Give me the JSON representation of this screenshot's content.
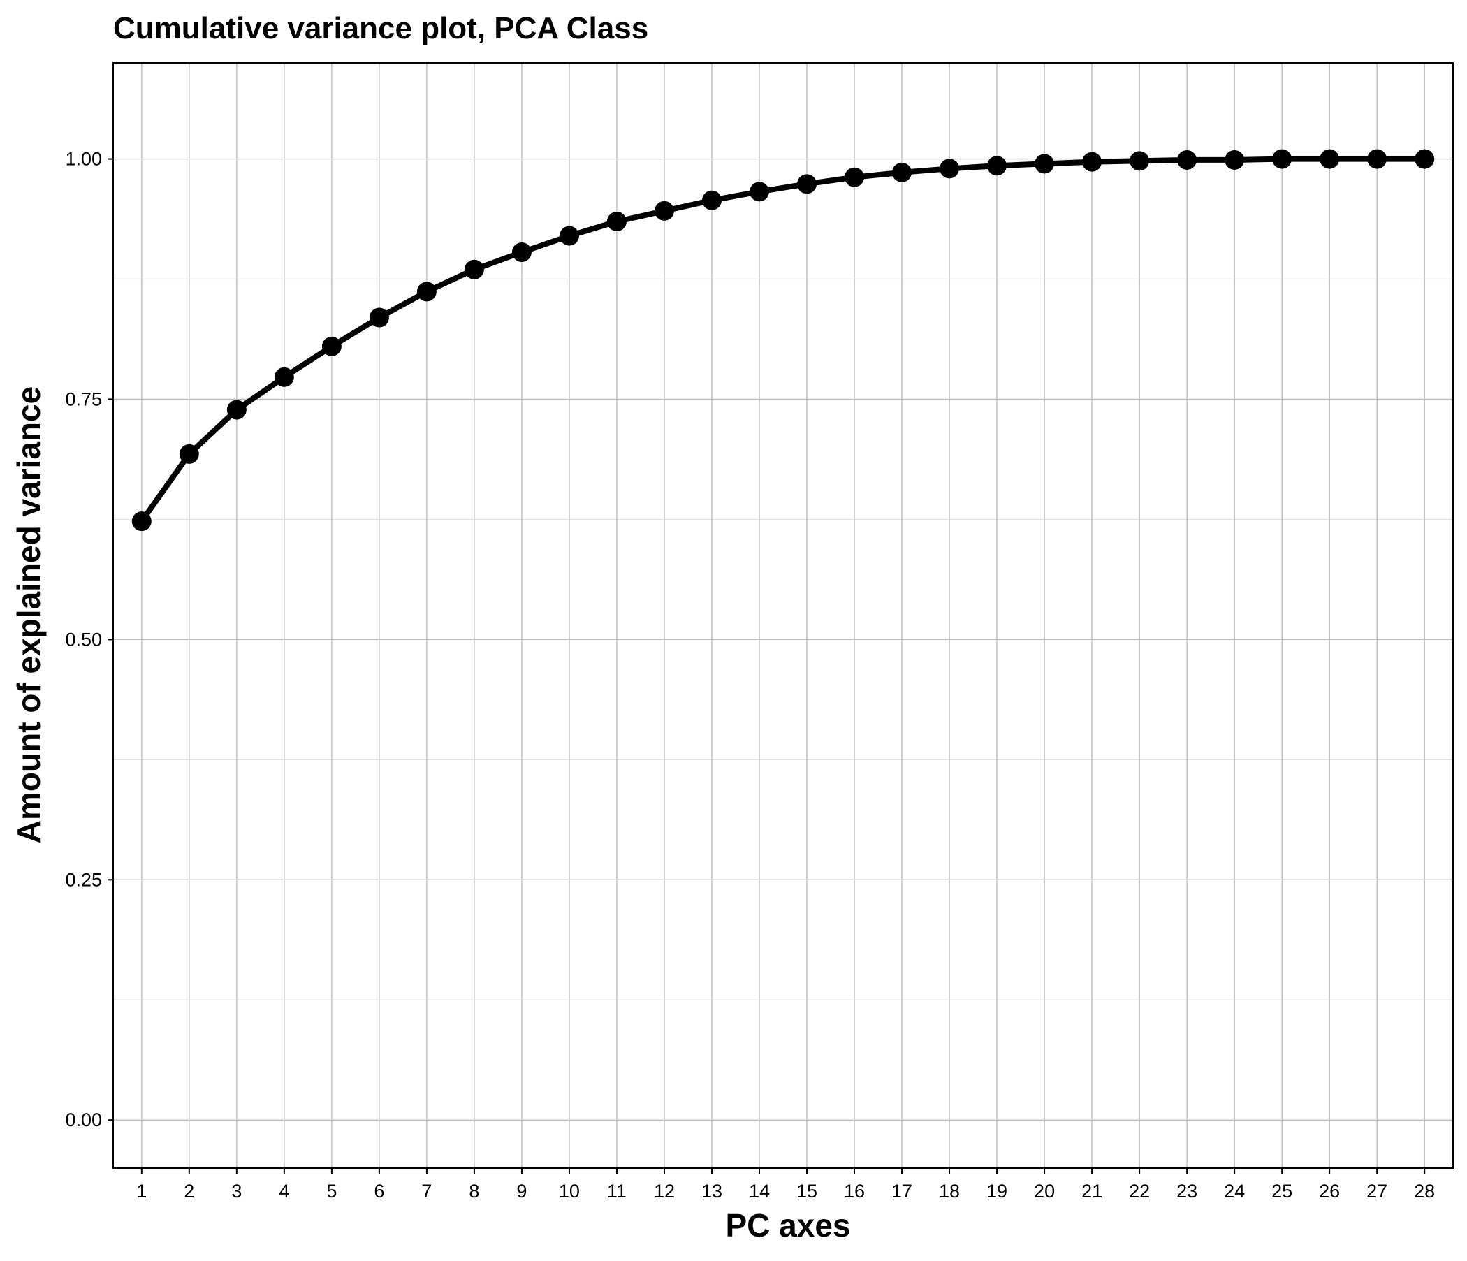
{
  "chart_data": {
    "type": "line",
    "title": "Cumulative variance plot, PCA Class",
    "xlabel": "PC axes",
    "ylabel": "Amount of explained variance",
    "x": [
      1,
      2,
      3,
      4,
      5,
      6,
      7,
      8,
      9,
      10,
      11,
      12,
      13,
      14,
      15,
      16,
      17,
      18,
      19,
      20,
      21,
      22,
      23,
      24,
      25,
      26,
      27,
      28
    ],
    "series": [
      {
        "values": [
          0.623,
          0.693,
          0.739,
          0.773,
          0.805,
          0.835,
          0.862,
          0.885,
          0.903,
          0.92,
          0.935,
          0.946,
          0.957,
          0.966,
          0.974,
          0.981,
          0.986,
          0.99,
          0.993,
          0.995,
          0.997,
          0.998,
          0.999,
          0.999,
          1.0,
          1.0,
          1.0,
          1.0
        ],
        "color": "#000000",
        "markers": true
      }
    ],
    "xlim": [
      0.4,
      28.6
    ],
    "ylim": [
      -0.05,
      1.1
    ],
    "yticks": [
      0.0,
      0.25,
      0.5,
      0.75,
      1.0
    ],
    "ytick_labels": [
      "0.00",
      "0.25",
      "0.50",
      "0.75",
      "1.00"
    ],
    "xtick_labels": [
      "1",
      "2",
      "3",
      "4",
      "5",
      "6",
      "7",
      "8",
      "9",
      "10",
      "11",
      "12",
      "13",
      "14",
      "15",
      "16",
      "17",
      "18",
      "19",
      "20",
      "21",
      "22",
      "23",
      "24",
      "25",
      "26",
      "27",
      "28"
    ],
    "grid": true,
    "minor_grid": true,
    "legend": "none"
  }
}
